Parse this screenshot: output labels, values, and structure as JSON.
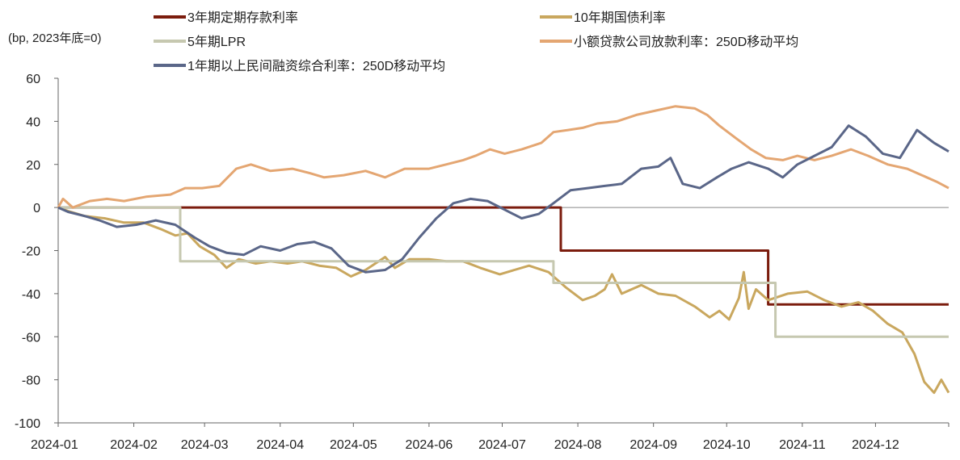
{
  "chart_data": {
    "type": "line",
    "unit_label": "(bp, 2023年底=0)",
    "title": "",
    "xlabel": "",
    "ylabel": "",
    "ylim": [
      -100,
      60
    ],
    "yticks": [
      60,
      40,
      20,
      0,
      -20,
      -40,
      -60,
      -80,
      -100
    ],
    "x_ticks": [
      "2024-01",
      "2024-02",
      "2024-03",
      "2024-04",
      "2024-05",
      "2024-06",
      "2024-07",
      "2024-08",
      "2024-09",
      "2024-10",
      "2024-11",
      "2024-12"
    ],
    "xlim": [
      "2024-01-01",
      "2024-12-31"
    ],
    "grid": false,
    "legend_position": "top",
    "series": [
      {
        "name": "3年期定期存款利率",
        "color": "#7b1c0d",
        "step": true,
        "points": [
          [
            "2024-01-01",
            0
          ],
          [
            "2024-07-25",
            0
          ],
          [
            "2024-07-25",
            -20
          ],
          [
            "2024-10-18",
            -20
          ],
          [
            "2024-10-18",
            -45
          ],
          [
            "2024-12-31",
            -45
          ]
        ]
      },
      {
        "name": "10年期国债利率",
        "color": "#c9a75e",
        "step": false,
        "points": [
          [
            "2024-01-01",
            0
          ],
          [
            "2024-01-06",
            -2
          ],
          [
            "2024-01-12",
            -4
          ],
          [
            "2024-01-20",
            -5
          ],
          [
            "2024-01-28",
            -7
          ],
          [
            "2024-02-05",
            -7
          ],
          [
            "2024-02-12",
            -10
          ],
          [
            "2024-02-18",
            -13
          ],
          [
            "2024-02-23",
            -12
          ],
          [
            "2024-02-28",
            -18
          ],
          [
            "2024-03-05",
            -22
          ],
          [
            "2024-03-10",
            -28
          ],
          [
            "2024-03-15",
            -24
          ],
          [
            "2024-03-22",
            -26
          ],
          [
            "2024-03-28",
            -25
          ],
          [
            "2024-04-04",
            -26
          ],
          [
            "2024-04-10",
            -25
          ],
          [
            "2024-04-17",
            -27
          ],
          [
            "2024-04-24",
            -28
          ],
          [
            "2024-04-30",
            -32
          ],
          [
            "2024-05-06",
            -29
          ],
          [
            "2024-05-10",
            -26
          ],
          [
            "2024-05-14",
            -23
          ],
          [
            "2024-05-18",
            -28
          ],
          [
            "2024-05-24",
            -24
          ],
          [
            "2024-06-01",
            -24
          ],
          [
            "2024-06-08",
            -25
          ],
          [
            "2024-06-15",
            -25
          ],
          [
            "2024-06-22",
            -28
          ],
          [
            "2024-06-30",
            -31
          ],
          [
            "2024-07-06",
            -29
          ],
          [
            "2024-07-12",
            -27
          ],
          [
            "2024-07-20",
            -30
          ],
          [
            "2024-07-27",
            -37
          ],
          [
            "2024-08-03",
            -43
          ],
          [
            "2024-08-08",
            -41
          ],
          [
            "2024-08-12",
            -38
          ],
          [
            "2024-08-15",
            -31
          ],
          [
            "2024-08-19",
            -40
          ],
          [
            "2024-08-27",
            -36
          ],
          [
            "2024-09-03",
            -40
          ],
          [
            "2024-09-10",
            -41
          ],
          [
            "2024-09-18",
            -46
          ],
          [
            "2024-09-24",
            -51
          ],
          [
            "2024-09-28",
            -48
          ],
          [
            "2024-10-02",
            -52
          ],
          [
            "2024-10-06",
            -42
          ],
          [
            "2024-10-08",
            -30
          ],
          [
            "2024-10-10",
            -47
          ],
          [
            "2024-10-13",
            -38
          ],
          [
            "2024-10-18",
            -43
          ],
          [
            "2024-10-26",
            -40
          ],
          [
            "2024-11-03",
            -39
          ],
          [
            "2024-11-10",
            -43
          ],
          [
            "2024-11-17",
            -46
          ],
          [
            "2024-11-24",
            -44
          ],
          [
            "2024-11-30",
            -48
          ],
          [
            "2024-12-06",
            -54
          ],
          [
            "2024-12-12",
            -58
          ],
          [
            "2024-12-17",
            -68
          ],
          [
            "2024-12-21",
            -81
          ],
          [
            "2024-12-25",
            -86
          ],
          [
            "2024-12-28",
            -80
          ],
          [
            "2024-12-31",
            -86
          ]
        ]
      },
      {
        "name": "5年期LPR",
        "color": "#c6c8b0",
        "step": true,
        "points": [
          [
            "2024-01-01",
            0
          ],
          [
            "2024-02-20",
            0
          ],
          [
            "2024-02-20",
            -25
          ],
          [
            "2024-07-22",
            -25
          ],
          [
            "2024-07-22",
            -35
          ],
          [
            "2024-10-21",
            -35
          ],
          [
            "2024-10-21",
            -60
          ],
          [
            "2024-12-31",
            -60
          ]
        ]
      },
      {
        "name": "小额贷款公司放款利率：250D移动平均",
        "color": "#e4a672",
        "step": false,
        "points": [
          [
            "2024-01-01",
            0
          ],
          [
            "2024-01-03",
            4
          ],
          [
            "2024-01-07",
            0
          ],
          [
            "2024-01-14",
            3
          ],
          [
            "2024-01-21",
            4
          ],
          [
            "2024-01-28",
            3
          ],
          [
            "2024-02-06",
            5
          ],
          [
            "2024-02-16",
            6
          ],
          [
            "2024-02-22",
            9
          ],
          [
            "2024-02-29",
            9
          ],
          [
            "2024-03-07",
            10
          ],
          [
            "2024-03-14",
            18
          ],
          [
            "2024-03-20",
            20
          ],
          [
            "2024-03-28",
            17
          ],
          [
            "2024-04-06",
            18
          ],
          [
            "2024-04-13",
            16
          ],
          [
            "2024-04-19",
            14
          ],
          [
            "2024-04-27",
            15
          ],
          [
            "2024-05-06",
            17
          ],
          [
            "2024-05-14",
            14
          ],
          [
            "2024-05-22",
            18
          ],
          [
            "2024-06-01",
            18
          ],
          [
            "2024-06-08",
            20
          ],
          [
            "2024-06-15",
            22
          ],
          [
            "2024-06-20",
            24
          ],
          [
            "2024-06-26",
            27
          ],
          [
            "2024-07-02",
            25
          ],
          [
            "2024-07-09",
            27
          ],
          [
            "2024-07-17",
            30
          ],
          [
            "2024-07-22",
            35
          ],
          [
            "2024-07-28",
            36
          ],
          [
            "2024-08-03",
            37
          ],
          [
            "2024-08-09",
            39
          ],
          [
            "2024-08-17",
            40
          ],
          [
            "2024-08-25",
            43
          ],
          [
            "2024-09-02",
            45
          ],
          [
            "2024-09-10",
            47
          ],
          [
            "2024-09-18",
            46
          ],
          [
            "2024-09-23",
            43
          ],
          [
            "2024-09-28",
            38
          ],
          [
            "2024-10-05",
            32
          ],
          [
            "2024-10-11",
            27
          ],
          [
            "2024-10-17",
            23
          ],
          [
            "2024-10-24",
            22
          ],
          [
            "2024-10-30",
            24
          ],
          [
            "2024-11-06",
            22
          ],
          [
            "2024-11-13",
            24
          ],
          [
            "2024-11-21",
            27
          ],
          [
            "2024-11-28",
            24
          ],
          [
            "2024-12-06",
            20
          ],
          [
            "2024-12-14",
            18
          ],
          [
            "2024-12-20",
            15
          ],
          [
            "2024-12-26",
            12
          ],
          [
            "2024-12-31",
            9
          ]
        ]
      },
      {
        "name": "1年期以上民间融资综合利率：250D移动平均",
        "color": "#5a6688",
        "step": false,
        "points": [
          [
            "2024-01-01",
            0
          ],
          [
            "2024-01-05",
            -2
          ],
          [
            "2024-01-12",
            -4
          ],
          [
            "2024-01-18",
            -6
          ],
          [
            "2024-01-25",
            -9
          ],
          [
            "2024-02-02",
            -8
          ],
          [
            "2024-02-10",
            -6
          ],
          [
            "2024-02-18",
            -8
          ],
          [
            "2024-02-26",
            -14
          ],
          [
            "2024-03-03",
            -18
          ],
          [
            "2024-03-10",
            -21
          ],
          [
            "2024-03-17",
            -22
          ],
          [
            "2024-03-24",
            -18
          ],
          [
            "2024-04-01",
            -20
          ],
          [
            "2024-04-08",
            -17
          ],
          [
            "2024-04-15",
            -16
          ],
          [
            "2024-04-22",
            -19
          ],
          [
            "2024-04-29",
            -27
          ],
          [
            "2024-05-06",
            -30
          ],
          [
            "2024-05-14",
            -29
          ],
          [
            "2024-05-21",
            -24
          ],
          [
            "2024-05-28",
            -14
          ],
          [
            "2024-06-04",
            -5
          ],
          [
            "2024-06-11",
            2
          ],
          [
            "2024-06-18",
            4
          ],
          [
            "2024-06-25",
            3
          ],
          [
            "2024-07-02",
            -1
          ],
          [
            "2024-07-09",
            -5
          ],
          [
            "2024-07-16",
            -3
          ],
          [
            "2024-07-22",
            2
          ],
          [
            "2024-07-29",
            8
          ],
          [
            "2024-08-05",
            9
          ],
          [
            "2024-08-12",
            10
          ],
          [
            "2024-08-19",
            11
          ],
          [
            "2024-08-27",
            18
          ],
          [
            "2024-09-03",
            19
          ],
          [
            "2024-09-08",
            23
          ],
          [
            "2024-09-13",
            11
          ],
          [
            "2024-09-20",
            9
          ],
          [
            "2024-09-27",
            14
          ],
          [
            "2024-10-03",
            18
          ],
          [
            "2024-10-10",
            21
          ],
          [
            "2024-10-18",
            18
          ],
          [
            "2024-10-24",
            14
          ],
          [
            "2024-10-30",
            20
          ],
          [
            "2024-11-06",
            24
          ],
          [
            "2024-11-13",
            28
          ],
          [
            "2024-11-20",
            38
          ],
          [
            "2024-11-27",
            33
          ],
          [
            "2024-12-04",
            25
          ],
          [
            "2024-12-11",
            23
          ],
          [
            "2024-12-18",
            36
          ],
          [
            "2024-12-25",
            30
          ],
          [
            "2024-12-31",
            26
          ]
        ]
      }
    ]
  }
}
